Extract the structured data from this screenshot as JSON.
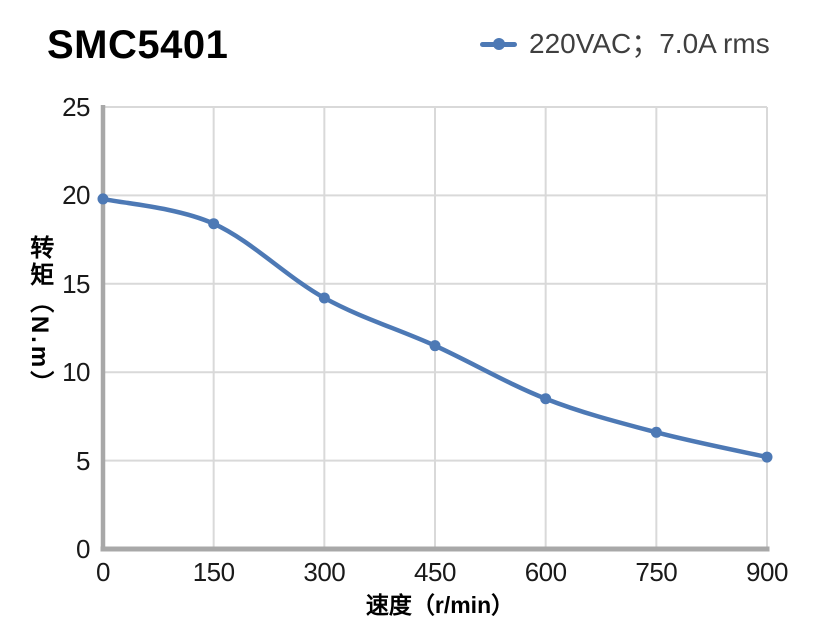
{
  "chart_data": {
    "type": "line",
    "title": "SMC5401",
    "x": [
      0,
      150,
      300,
      450,
      600,
      750,
      900
    ],
    "series": [
      {
        "name": "220VAC；7.0A rms",
        "color": "#4d79b5",
        "values": [
          19.8,
          18.4,
          14.2,
          11.5,
          8.5,
          6.6,
          5.2
        ]
      }
    ],
    "xlabel": "速度（r/min）",
    "ylabel": "转矩（N.m）",
    "xlim": [
      0,
      900
    ],
    "ylim": [
      0,
      25
    ],
    "x_ticks": [
      0,
      150,
      300,
      450,
      600,
      750,
      900
    ],
    "y_ticks": [
      0,
      5,
      10,
      15,
      20,
      25
    ],
    "grid": true,
    "legend_position": "top-right",
    "line_style": "smooth",
    "marker": "circle",
    "colors": {
      "grid": "#d9d9d9",
      "axis": "#a8a8a8",
      "tick_text": "#1a1a1a",
      "title_text": "#000000",
      "legend_text": "#3f3f3f"
    }
  }
}
